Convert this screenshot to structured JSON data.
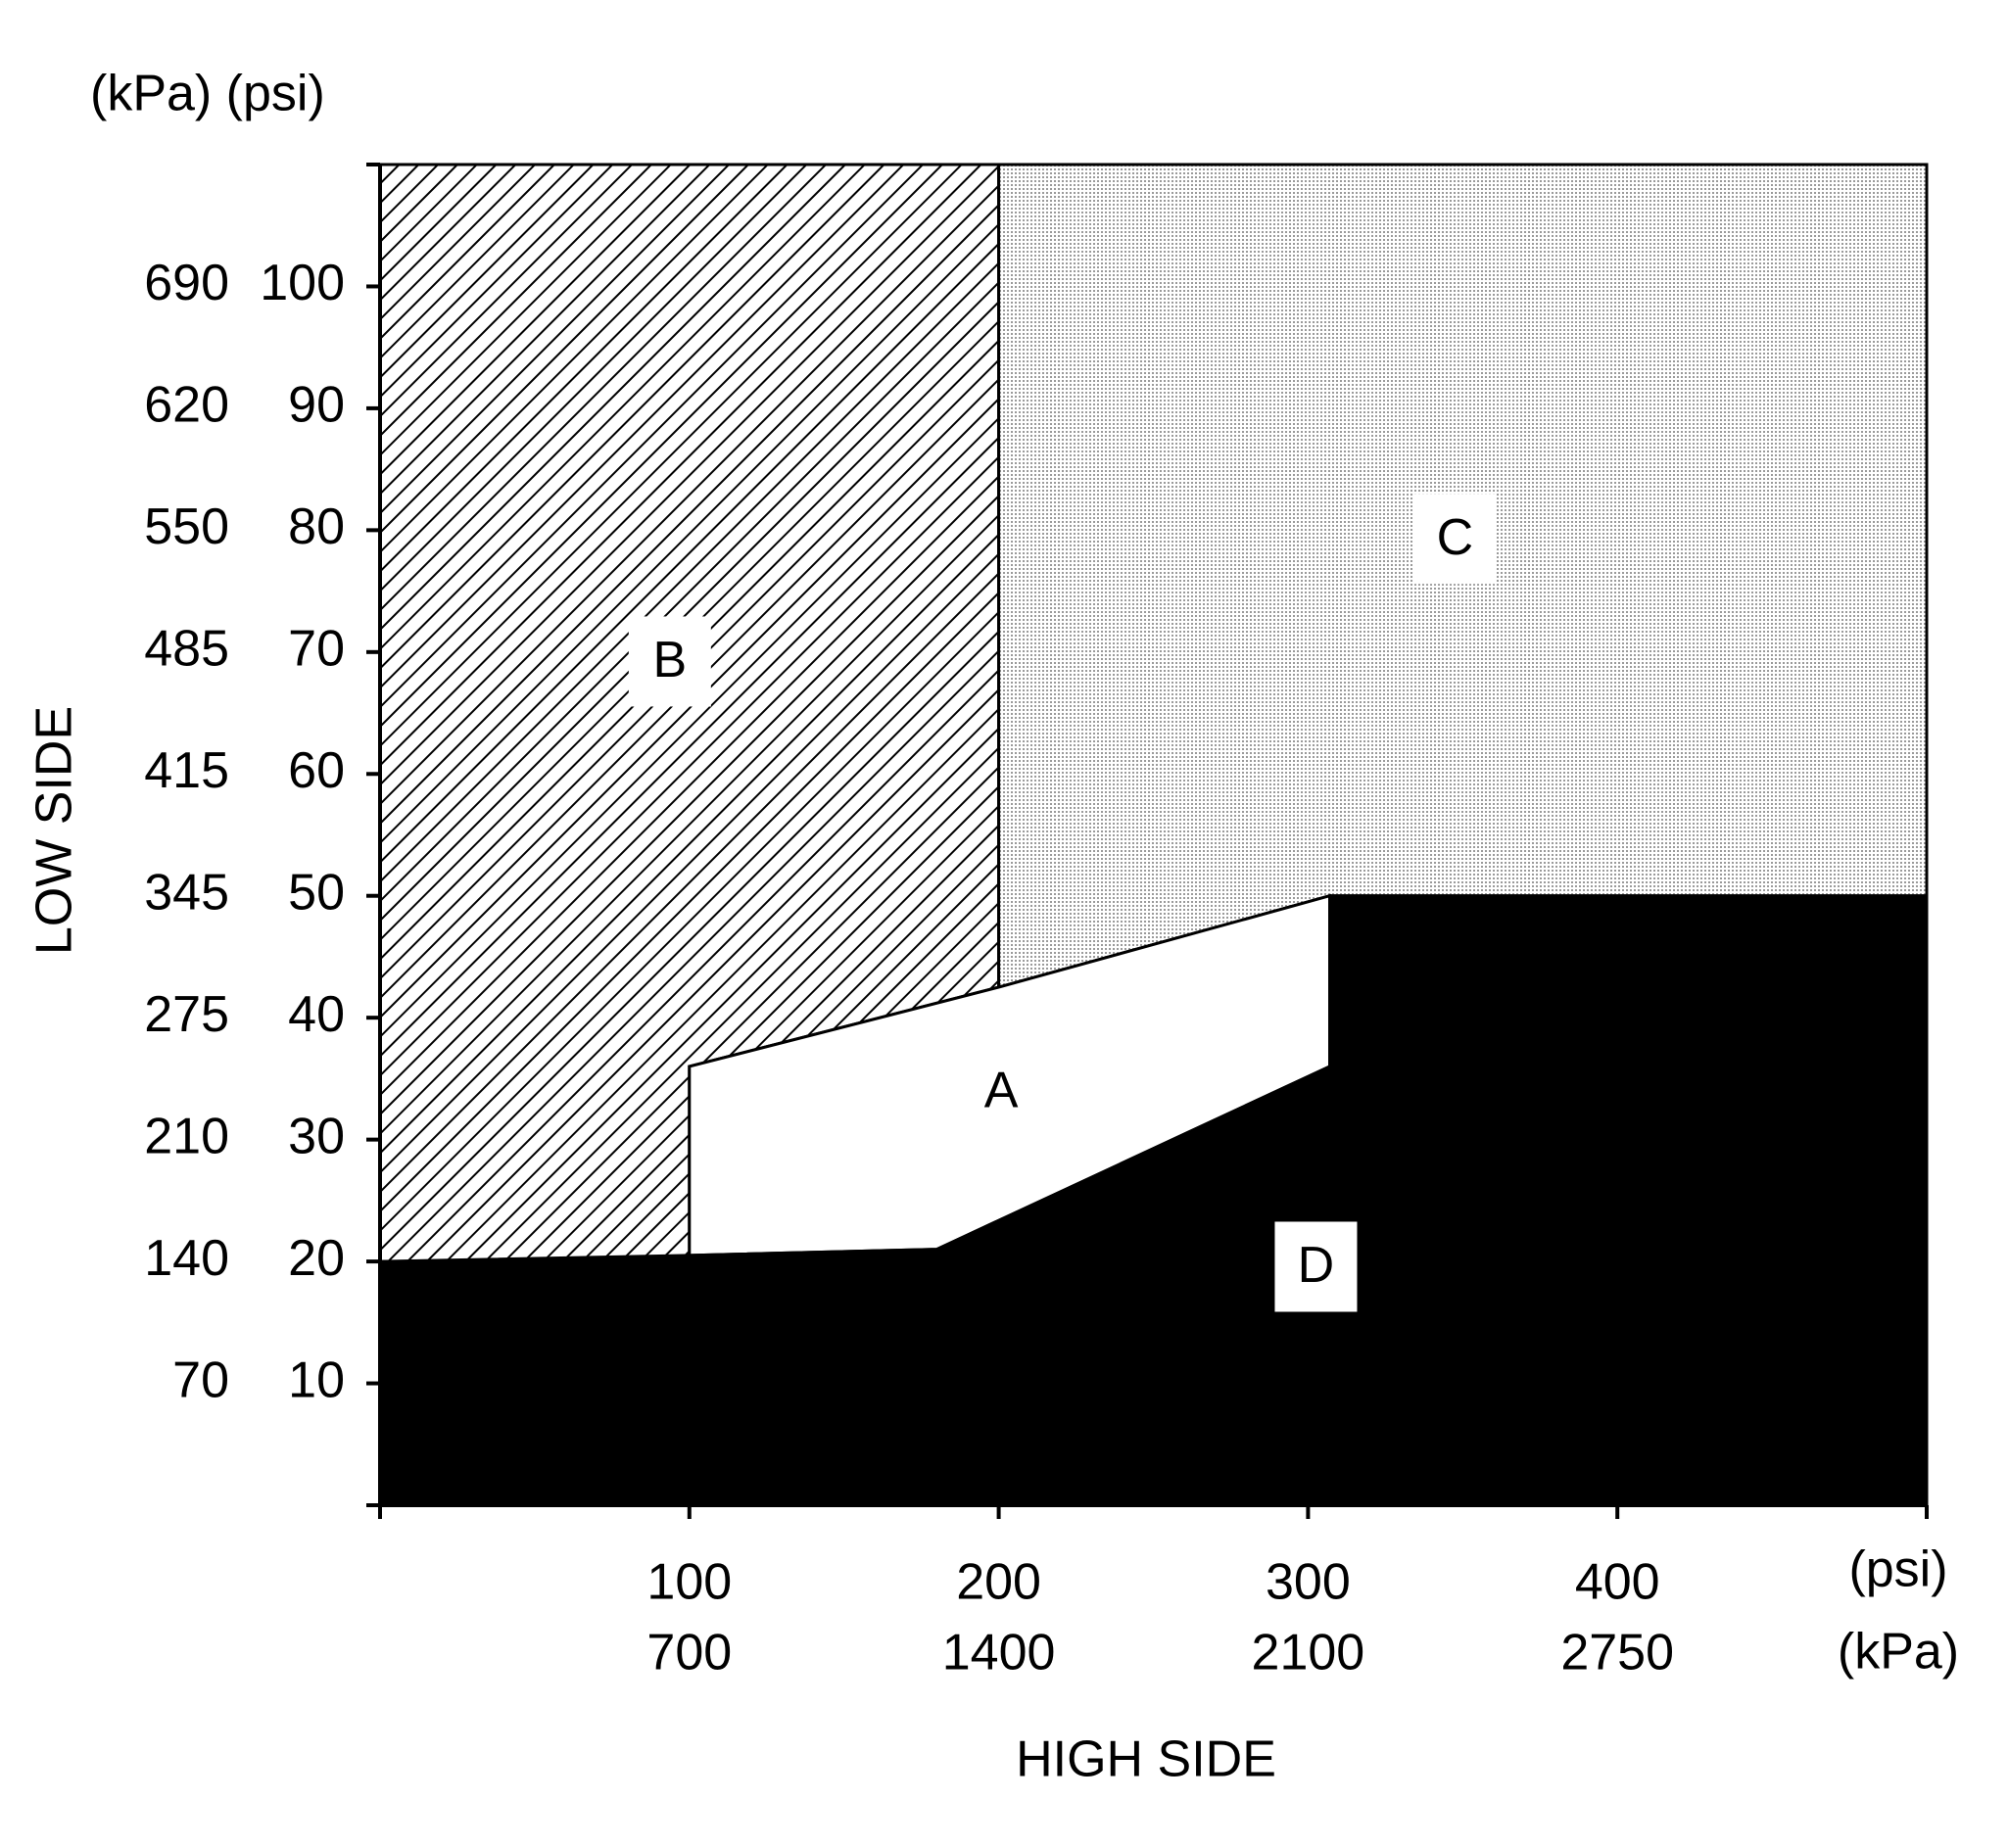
{
  "chart_data": {
    "type": "region",
    "x_label": "HIGH SIDE",
    "y_label": "LOW SIDE",
    "y_units": "(kPa) (psi)",
    "x_units": [
      "(psi)",
      "(kPa)"
    ],
    "xlim": [
      0,
      500
    ],
    "ylim": [
      0,
      110
    ],
    "xticks": [
      100,
      200,
      300,
      400
    ],
    "xtick_kpa_labels": [
      "700",
      "1400",
      "2100",
      "2750"
    ],
    "yticks": [
      10,
      20,
      30,
      40,
      50,
      60,
      70,
      80,
      90,
      100
    ],
    "ytick_kpa_labels": [
      "70",
      "140",
      "210",
      "275",
      "345",
      "415",
      "485",
      "550",
      "620",
      "690"
    ],
    "series": [
      {
        "name": "B",
        "fill": "hatch",
        "x": [
          0,
          200,
          200,
          100,
          100,
          0
        ],
        "values": [
          110,
          110,
          42.5,
          36,
          20,
          20
        ]
      },
      {
        "name": "C",
        "fill": "dots",
        "x": [
          200,
          500,
          500,
          307,
          200
        ],
        "values": [
          110,
          110,
          50,
          50,
          42.5
        ]
      },
      {
        "name": "A",
        "fill": "#ffffff",
        "x": [
          100,
          200,
          307,
          307,
          180,
          100
        ],
        "values": [
          36,
          42.5,
          50,
          36,
          21,
          20.5
        ]
      },
      {
        "name": "D",
        "fill": "#000000",
        "x": [
          0,
          100,
          180,
          307,
          307,
          500,
          500,
          0
        ],
        "values": [
          20,
          20.5,
          21,
          36,
          50,
          50,
          0,
          0
        ]
      }
    ]
  }
}
